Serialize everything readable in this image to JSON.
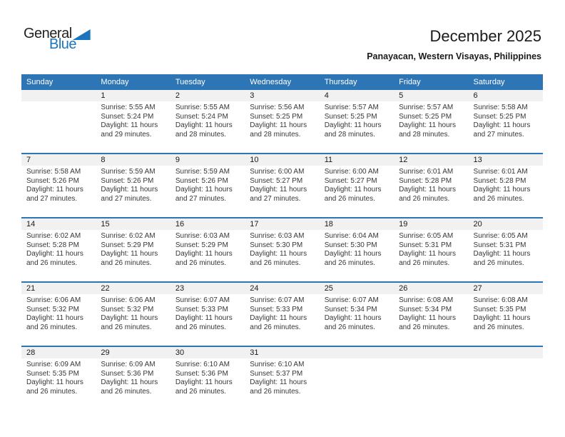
{
  "logo": {
    "part1": "General",
    "part2": "Blue"
  },
  "header": {
    "title": "December 2025",
    "subtitle": "Panayacan, Western Visayas, Philippines"
  },
  "colors": {
    "accent_blue": "#2e75b6",
    "logo_blue": "#1c75bc",
    "number_band_gray": "#f1f1f1"
  },
  "calendar": {
    "day_headers": [
      "Sunday",
      "Monday",
      "Tuesday",
      "Wednesday",
      "Thursday",
      "Friday",
      "Saturday"
    ],
    "weeks": [
      [
        null,
        {
          "day": "1",
          "sunrise": "Sunrise: 5:55 AM",
          "sunset": "Sunset: 5:24 PM",
          "daylight": "Daylight: 11 hours and 29 minutes."
        },
        {
          "day": "2",
          "sunrise": "Sunrise: 5:55 AM",
          "sunset": "Sunset: 5:24 PM",
          "daylight": "Daylight: 11 hours and 28 minutes."
        },
        {
          "day": "3",
          "sunrise": "Sunrise: 5:56 AM",
          "sunset": "Sunset: 5:25 PM",
          "daylight": "Daylight: 11 hours and 28 minutes."
        },
        {
          "day": "4",
          "sunrise": "Sunrise: 5:57 AM",
          "sunset": "Sunset: 5:25 PM",
          "daylight": "Daylight: 11 hours and 28 minutes."
        },
        {
          "day": "5",
          "sunrise": "Sunrise: 5:57 AM",
          "sunset": "Sunset: 5:25 PM",
          "daylight": "Daylight: 11 hours and 28 minutes."
        },
        {
          "day": "6",
          "sunrise": "Sunrise: 5:58 AM",
          "sunset": "Sunset: 5:25 PM",
          "daylight": "Daylight: 11 hours and 27 minutes."
        }
      ],
      [
        {
          "day": "7",
          "sunrise": "Sunrise: 5:58 AM",
          "sunset": "Sunset: 5:26 PM",
          "daylight": "Daylight: 11 hours and 27 minutes."
        },
        {
          "day": "8",
          "sunrise": "Sunrise: 5:59 AM",
          "sunset": "Sunset: 5:26 PM",
          "daylight": "Daylight: 11 hours and 27 minutes."
        },
        {
          "day": "9",
          "sunrise": "Sunrise: 5:59 AM",
          "sunset": "Sunset: 5:26 PM",
          "daylight": "Daylight: 11 hours and 27 minutes."
        },
        {
          "day": "10",
          "sunrise": "Sunrise: 6:00 AM",
          "sunset": "Sunset: 5:27 PM",
          "daylight": "Daylight: 11 hours and 27 minutes."
        },
        {
          "day": "11",
          "sunrise": "Sunrise: 6:00 AM",
          "sunset": "Sunset: 5:27 PM",
          "daylight": "Daylight: 11 hours and 26 minutes."
        },
        {
          "day": "12",
          "sunrise": "Sunrise: 6:01 AM",
          "sunset": "Sunset: 5:28 PM",
          "daylight": "Daylight: 11 hours and 26 minutes."
        },
        {
          "day": "13",
          "sunrise": "Sunrise: 6:01 AM",
          "sunset": "Sunset: 5:28 PM",
          "daylight": "Daylight: 11 hours and 26 minutes."
        }
      ],
      [
        {
          "day": "14",
          "sunrise": "Sunrise: 6:02 AM",
          "sunset": "Sunset: 5:28 PM",
          "daylight": "Daylight: 11 hours and 26 minutes."
        },
        {
          "day": "15",
          "sunrise": "Sunrise: 6:02 AM",
          "sunset": "Sunset: 5:29 PM",
          "daylight": "Daylight: 11 hours and 26 minutes."
        },
        {
          "day": "16",
          "sunrise": "Sunrise: 6:03 AM",
          "sunset": "Sunset: 5:29 PM",
          "daylight": "Daylight: 11 hours and 26 minutes."
        },
        {
          "day": "17",
          "sunrise": "Sunrise: 6:03 AM",
          "sunset": "Sunset: 5:30 PM",
          "daylight": "Daylight: 11 hours and 26 minutes."
        },
        {
          "day": "18",
          "sunrise": "Sunrise: 6:04 AM",
          "sunset": "Sunset: 5:30 PM",
          "daylight": "Daylight: 11 hours and 26 minutes."
        },
        {
          "day": "19",
          "sunrise": "Sunrise: 6:05 AM",
          "sunset": "Sunset: 5:31 PM",
          "daylight": "Daylight: 11 hours and 26 minutes."
        },
        {
          "day": "20",
          "sunrise": "Sunrise: 6:05 AM",
          "sunset": "Sunset: 5:31 PM",
          "daylight": "Daylight: 11 hours and 26 minutes."
        }
      ],
      [
        {
          "day": "21",
          "sunrise": "Sunrise: 6:06 AM",
          "sunset": "Sunset: 5:32 PM",
          "daylight": "Daylight: 11 hours and 26 minutes."
        },
        {
          "day": "22",
          "sunrise": "Sunrise: 6:06 AM",
          "sunset": "Sunset: 5:32 PM",
          "daylight": "Daylight: 11 hours and 26 minutes."
        },
        {
          "day": "23",
          "sunrise": "Sunrise: 6:07 AM",
          "sunset": "Sunset: 5:33 PM",
          "daylight": "Daylight: 11 hours and 26 minutes."
        },
        {
          "day": "24",
          "sunrise": "Sunrise: 6:07 AM",
          "sunset": "Sunset: 5:33 PM",
          "daylight": "Daylight: 11 hours and 26 minutes."
        },
        {
          "day": "25",
          "sunrise": "Sunrise: 6:07 AM",
          "sunset": "Sunset: 5:34 PM",
          "daylight": "Daylight: 11 hours and 26 minutes."
        },
        {
          "day": "26",
          "sunrise": "Sunrise: 6:08 AM",
          "sunset": "Sunset: 5:34 PM",
          "daylight": "Daylight: 11 hours and 26 minutes."
        },
        {
          "day": "27",
          "sunrise": "Sunrise: 6:08 AM",
          "sunset": "Sunset: 5:35 PM",
          "daylight": "Daylight: 11 hours and 26 minutes."
        }
      ],
      [
        {
          "day": "28",
          "sunrise": "Sunrise: 6:09 AM",
          "sunset": "Sunset: 5:35 PM",
          "daylight": "Daylight: 11 hours and 26 minutes."
        },
        {
          "day": "29",
          "sunrise": "Sunrise: 6:09 AM",
          "sunset": "Sunset: 5:36 PM",
          "daylight": "Daylight: 11 hours and 26 minutes."
        },
        {
          "day": "30",
          "sunrise": "Sunrise: 6:10 AM",
          "sunset": "Sunset: 5:36 PM",
          "daylight": "Daylight: 11 hours and 26 minutes."
        },
        {
          "day": "31",
          "sunrise": "Sunrise: 6:10 AM",
          "sunset": "Sunset: 5:37 PM",
          "daylight": "Daylight: 11 hours and 26 minutes."
        },
        null,
        null,
        null
      ]
    ]
  }
}
